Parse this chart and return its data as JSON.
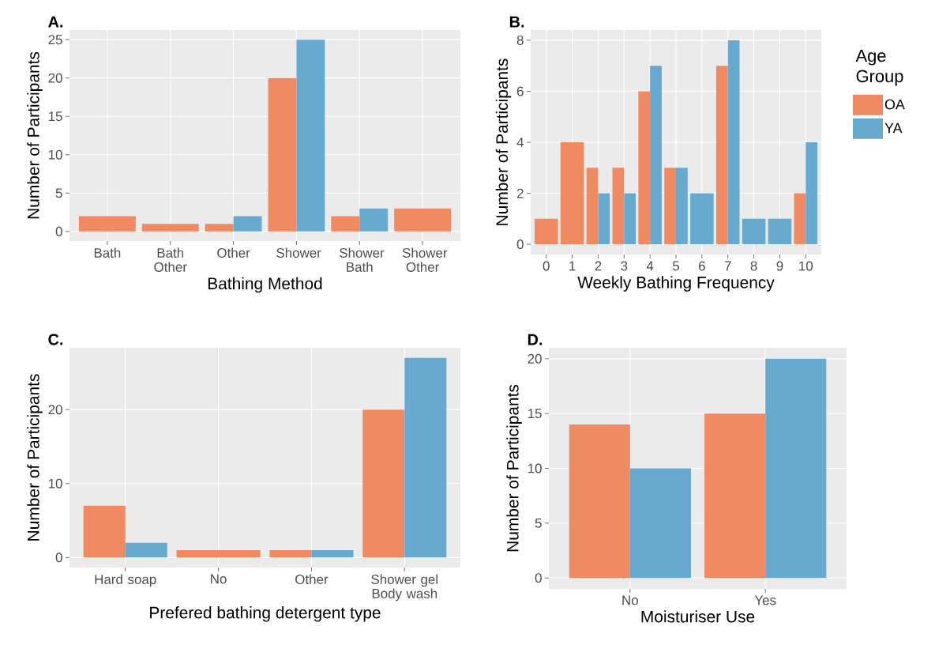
{
  "chart_data": [
    {
      "type": "bar",
      "title": "A.",
      "xlabel": "Bathing Method",
      "ylabel": "Number of Participants",
      "categories": [
        "Bath",
        "Bath Other",
        "Other",
        "Shower",
        "Shower Bath",
        "Shower Other"
      ],
      "series": [
        {
          "color": "#ef8a62",
          "values": [
            2,
            1,
            1,
            20,
            2,
            3
          ]
        },
        {
          "color": "#67a9cf",
          "values": [
            null,
            null,
            2,
            25,
            3,
            null
          ]
        }
      ],
      "ylim": [
        -1.25,
        26.25
      ],
      "yticks": [
        0,
        5,
        10,
        15,
        20,
        25
      ],
      "grid": true,
      "legend": false
    },
    {
      "type": "bar",
      "title": "B.",
      "xlabel": "Weekly Bathing Frequency",
      "ylabel": "Number of Participants",
      "legend_title": "Age Group",
      "categories": [
        "0",
        "1",
        "2",
        "3",
        "4",
        "5",
        "6",
        "7",
        "8",
        "9",
        "10"
      ],
      "series": [
        {
          "name": "OA",
          "color": "#ef8a62",
          "values": [
            1,
            4,
            3,
            3,
            6,
            3,
            null,
            7,
            null,
            null,
            2
          ]
        },
        {
          "name": "YA",
          "color": "#67a9cf",
          "values": [
            null,
            null,
            2,
            2,
            7,
            3,
            2,
            8,
            1,
            1,
            4
          ]
        }
      ],
      "ylim": [
        -0.4,
        8.4
      ],
      "yticks": [
        0,
        2,
        4,
        6,
        8
      ],
      "grid": true,
      "legend": "right"
    },
    {
      "type": "bar",
      "title": "C.",
      "xlabel": "Prefered bathing detergent type",
      "ylabel": "Number of Participants",
      "categories": [
        "Hard soap",
        "No",
        "Other",
        "Shower gel Body wash"
      ],
      "series": [
        {
          "color": "#ef8a62",
          "values": [
            7,
            1,
            1,
            20
          ]
        },
        {
          "color": "#67a9cf",
          "values": [
            2,
            null,
            1,
            27
          ]
        }
      ],
      "ylim": [
        -1.35,
        28.35
      ],
      "yticks": [
        0,
        10,
        20
      ],
      "grid": true,
      "legend": false
    },
    {
      "type": "bar",
      "title": "D.",
      "xlabel": "Moisturiser Use",
      "ylabel": "Number of Participants",
      "categories": [
        "No",
        "Yes"
      ],
      "series": [
        {
          "color": "#ef8a62",
          "values": [
            14,
            15
          ]
        },
        {
          "color": "#67a9cf",
          "values": [
            10,
            20
          ]
        }
      ],
      "ylim": [
        -1,
        21
      ],
      "yticks": [
        0,
        5,
        10,
        15,
        20
      ],
      "grid": true,
      "legend": false
    }
  ]
}
